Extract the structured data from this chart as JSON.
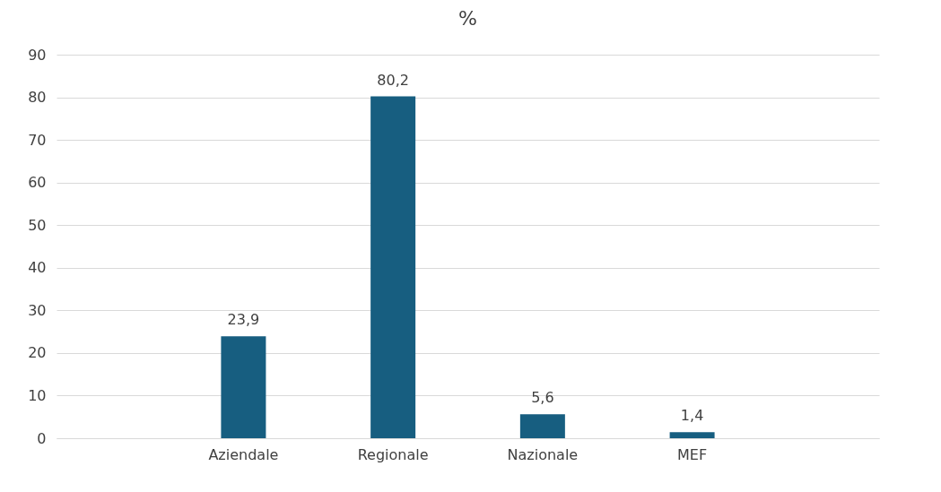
{
  "chart_data": {
    "type": "bar",
    "title": "%",
    "categories": [
      null,
      "Aziendale",
      "Regionale",
      "Nazionale",
      "MEF",
      null
    ],
    "values": [
      null,
      23.9,
      80.2,
      5.6,
      1.4,
      null
    ],
    "value_labels": [
      null,
      "23,9",
      "80,2",
      "5,6",
      "1,4",
      null
    ],
    "color": "#175e80",
    "ylim": [
      0,
      90
    ],
    "yticks": [
      0,
      10,
      20,
      30,
      40,
      50,
      60,
      70,
      80,
      90
    ],
    "grid": "y"
  }
}
